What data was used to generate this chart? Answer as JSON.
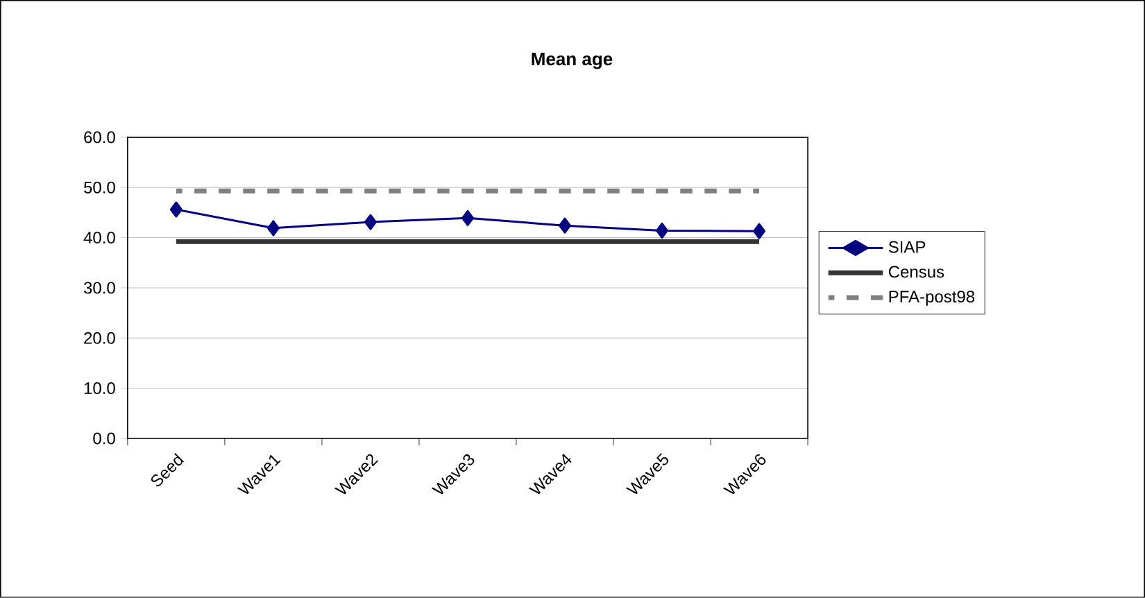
{
  "chart_data": {
    "type": "line",
    "title": "Mean age",
    "categories": [
      "Seed",
      "Wave1",
      "Wave2",
      "Wave3",
      "Wave4",
      "Wave5",
      "Wave6"
    ],
    "series": [
      {
        "name": "SIAP",
        "color": "#000080",
        "marker": "diamond",
        "line_style": "solid",
        "values": [
          45.6,
          41.9,
          43.1,
          43.9,
          42.4,
          41.4,
          41.3
        ]
      },
      {
        "name": "Census",
        "color": "#333333",
        "marker": "none",
        "line_style": "solid",
        "values": [
          39.2,
          39.2,
          39.2,
          39.2,
          39.2,
          39.2,
          39.2
        ]
      },
      {
        "name": "PFA-post98",
        "color": "#808080",
        "marker": "none",
        "line_style": "dashed",
        "values": [
          49.3,
          49.3,
          49.3,
          49.3,
          49.3,
          49.3,
          49.3
        ]
      }
    ],
    "ylim": [
      0,
      60
    ],
    "yticks": [
      {
        "value": 0,
        "label": "0.0"
      },
      {
        "value": 10,
        "label": "10.0"
      },
      {
        "value": 20,
        "label": "20.0"
      },
      {
        "value": 30,
        "label": "30.0"
      },
      {
        "value": 40,
        "label": "40.0"
      },
      {
        "value": 50,
        "label": "50.0"
      },
      {
        "value": 60,
        "label": "60.0"
      }
    ],
    "grid": "y",
    "legend": "right"
  }
}
